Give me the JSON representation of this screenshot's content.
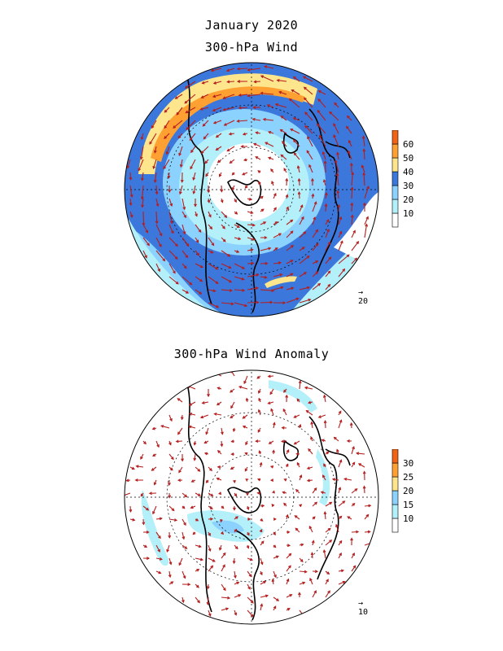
{
  "header": {
    "title": "January 2020",
    "panel1_title": "300-hPa Wind",
    "panel2_title": "300-hPa Wind Anomaly"
  },
  "panel1": {
    "colorbar": {
      "labels": [
        "10",
        "20",
        "30",
        "40",
        "50",
        "60"
      ],
      "colors": [
        "#ffffff",
        "#b4f0fa",
        "#8cd2ff",
        "#3c78dc",
        "#ffe68c",
        "#ffa032",
        "#f06414"
      ]
    },
    "reference_vector": "20"
  },
  "panel2": {
    "colorbar": {
      "labels": [
        "10",
        "15",
        "20",
        "25",
        "30"
      ],
      "colors": [
        "#ffffff",
        "#b4f0fa",
        "#8cd2ff",
        "#ffe68c",
        "#ffa032",
        "#f06414"
      ]
    },
    "reference_vector": "10"
  },
  "style": {
    "vector_color": "#b41e1e",
    "coast_color": "#000000"
  }
}
